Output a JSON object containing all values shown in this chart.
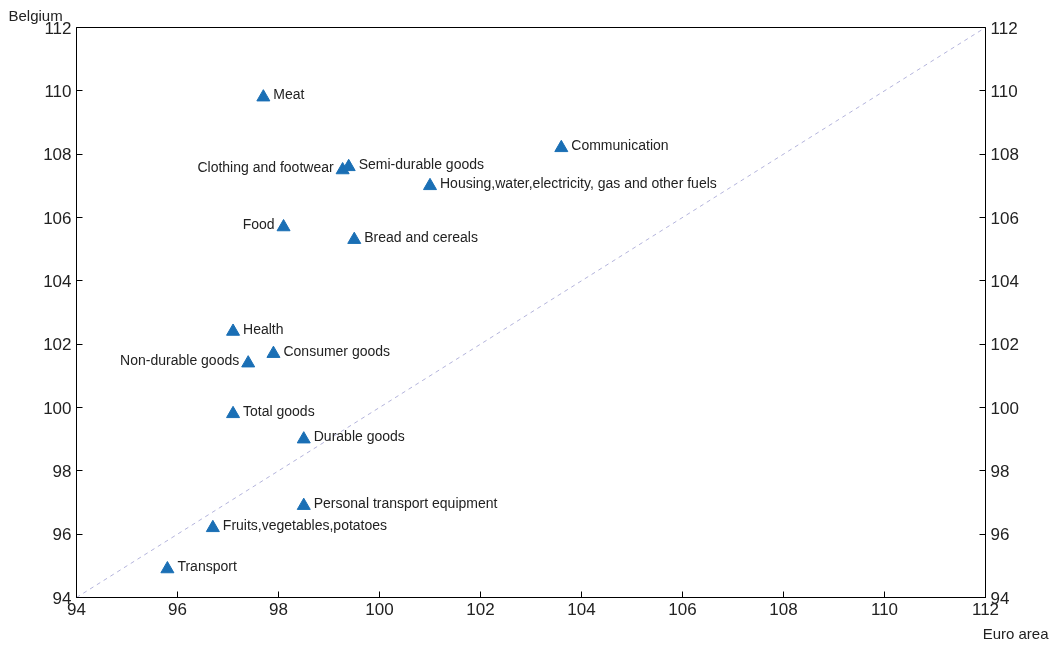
{
  "chart_data": {
    "type": "scatter",
    "xlabel": "Euro area",
    "ylabel": "Belgium",
    "xlim": [
      94,
      112
    ],
    "xticks": [
      94,
      96,
      98,
      100,
      102,
      104,
      106,
      108,
      110,
      112
    ],
    "ylim": [
      94,
      112
    ],
    "yticks": [
      94,
      96,
      98,
      100,
      102,
      104,
      106,
      108,
      110,
      112
    ],
    "y2lim": [
      94,
      112
    ],
    "y2ticks": [
      94,
      96,
      98,
      100,
      102,
      104,
      106,
      108,
      110,
      112
    ],
    "grid": false,
    "marker": "triangle",
    "series": [
      {
        "color": "#1a6fb5",
        "x": [
          97.7,
          99.27,
          99.39,
          103.6,
          101.0,
          98.1,
          99.5,
          97.1,
          97.9,
          97.4,
          97.1,
          98.5,
          98.5,
          96.7,
          95.8
        ],
        "values": [
          109.8,
          107.5,
          107.6,
          108.2,
          107.0,
          105.7,
          105.3,
          102.4,
          101.7,
          101.4,
          99.8,
          99.0,
          96.9,
          96.2,
          94.9
        ]
      },
      {
        "type": "line",
        "color": "#b4b4dc",
        "line_style": "dashed",
        "marker": "none",
        "x": [
          94,
          112
        ],
        "values": [
          94,
          112
        ]
      }
    ],
    "annotations": [
      {
        "text": "Meat",
        "x": 97.7,
        "y": 109.8
      },
      {
        "text": "Clothing and footwear",
        "x": 99.27,
        "y": 107.5
      },
      {
        "text": "Semi-durable goods",
        "x": 99.39,
        "y": 107.6
      },
      {
        "text": "Communication",
        "x": 103.6,
        "y": 108.2
      },
      {
        "text": "Housing,water,electricity, gas and other fuels",
        "x": 101.0,
        "y": 107.0
      },
      {
        "text": "Food",
        "x": 98.1,
        "y": 105.7
      },
      {
        "text": "Bread and cereals",
        "x": 99.5,
        "y": 105.3
      },
      {
        "text": "Health",
        "x": 97.1,
        "y": 102.4
      },
      {
        "text": "Consumer goods",
        "x": 97.9,
        "y": 101.7
      },
      {
        "text": "Non-durable goods",
        "x": 97.4,
        "y": 101.4
      },
      {
        "text": "Total goods",
        "x": 97.1,
        "y": 99.8
      },
      {
        "text": "Durable goods",
        "x": 98.5,
        "y": 99.0
      },
      {
        "text": "Personal transport equipment",
        "x": 98.5,
        "y": 96.9
      },
      {
        "text": "Fruits,vegetables,potatoes",
        "x": 96.7,
        "y": 96.2
      },
      {
        "text": "Transport",
        "x": 95.8,
        "y": 94.9
      }
    ]
  }
}
